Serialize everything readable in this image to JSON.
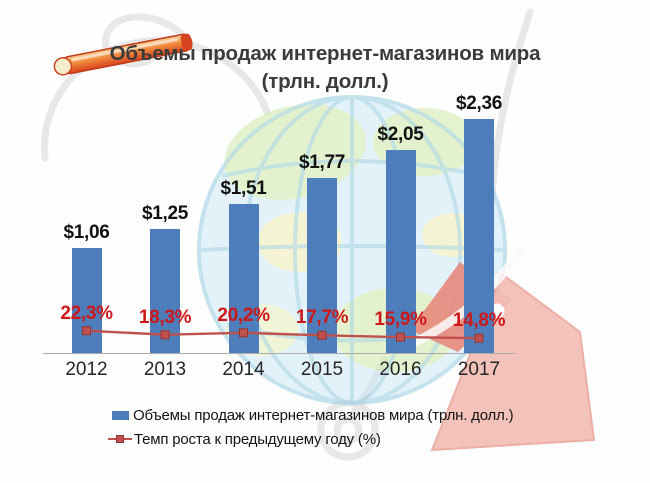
{
  "title": {
    "line1": "Объемы продаж интернет-магазинов мира",
    "line2": "(трлн. долл.)"
  },
  "chart_data": {
    "type": "bar",
    "categories": [
      "2012",
      "2013",
      "2014",
      "2015",
      "2016",
      "2017"
    ],
    "series": [
      {
        "name": "Объемы продаж интернет-магазинов мира (трлн. долл.)",
        "type": "bar",
        "values": [
          1.06,
          1.25,
          1.51,
          1.77,
          2.05,
          2.36
        ],
        "data_labels": [
          "$1,06",
          "$1,25",
          "$1,51",
          "$1,77",
          "$2,05",
          "$2,36"
        ],
        "color": "#4d7dba"
      },
      {
        "name": "Темп роста к предыдущему году (%)",
        "type": "line",
        "values": [
          22.3,
          18.3,
          20.2,
          17.7,
          15.9,
          14.8
        ],
        "data_labels": [
          "22,3%",
          "18,3%",
          "20,2%",
          "17,7%",
          "15,9%",
          "14,8%"
        ],
        "color": "#c0504d",
        "marker": "square",
        "marker_border": "#93362f",
        "label_color": "#ce1717"
      }
    ],
    "ylim": [
      0,
      2.5
    ],
    "xlabel": "",
    "ylabel": "",
    "grid": false,
    "legend_position": "bottom-left"
  },
  "colors": {
    "bar": "#4d7dba",
    "growth_line": "#c0504d",
    "growth_label": "#ce1717",
    "axis": "#ababab",
    "title_text": "#3b3b3b",
    "year_text": "#262626",
    "value_text": "#111111"
  },
  "decor": {
    "globe_icon": "globe-with-meridians",
    "cart_icon": "shopping-cart-outline",
    "pencil_icon": "orange-marker-pencil",
    "tag_icon": "pink-price-tag"
  }
}
